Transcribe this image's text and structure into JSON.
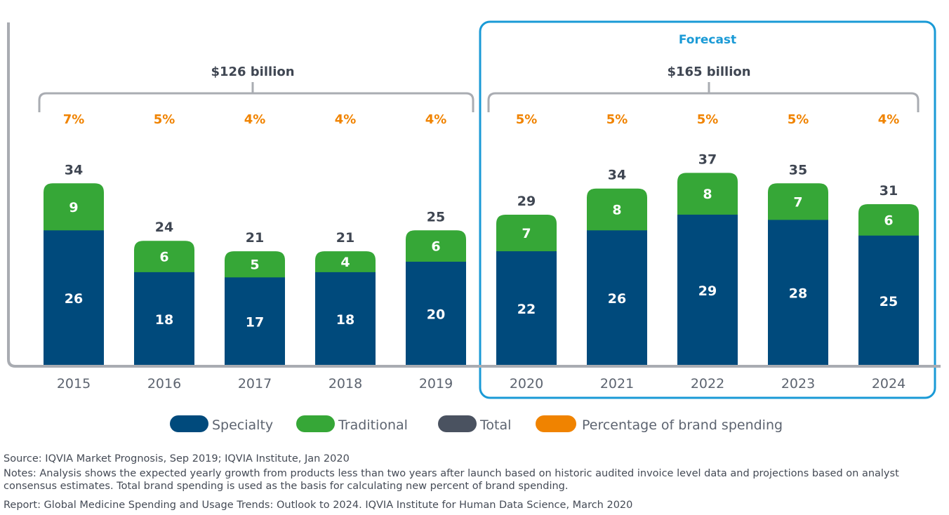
{
  "chart_data": {
    "type": "bar",
    "stacked": true,
    "categories": [
      "2015",
      "2016",
      "2017",
      "2018",
      "2019",
      "2020",
      "2021",
      "2022",
      "2023",
      "2024"
    ],
    "series": [
      {
        "name": "Specialty",
        "color": "#004a7c",
        "values": [
          26,
          18,
          17,
          18,
          20,
          22,
          26,
          29,
          28,
          25
        ]
      },
      {
        "name": "Traditional",
        "color": "#36a737",
        "values": [
          9,
          6,
          5,
          4,
          6,
          7,
          8,
          8,
          7,
          6
        ]
      }
    ],
    "totals": [
      34,
      24,
      21,
      21,
      25,
      29,
      34,
      37,
      35,
      31
    ],
    "percentages": [
      "7%",
      "5%",
      "4%",
      "4%",
      "4%",
      "5%",
      "5%",
      "5%",
      "5%",
      "4%"
    ],
    "ylim": [
      0,
      40
    ],
    "grid": false,
    "legend_position": "bottom",
    "legend": [
      {
        "name": "Specialty",
        "color": "#004a7c"
      },
      {
        "name": "Traditional",
        "color": "#36a737"
      },
      {
        "name": "Total",
        "color": "#4a5260"
      },
      {
        "name": "Percentage of brand spending",
        "color": "#f08300"
      }
    ],
    "annotations": {
      "forecast_label": "Forecast",
      "forecast_color": "#1a9ad6",
      "historical_total": "$126 billion",
      "forecast_total": "$165 billion"
    }
  },
  "colors": {
    "axis": "#a9acb2",
    "tick_text": "#5d6470",
    "total_text": "#3f4652",
    "percent_text": "#f08300",
    "bar_label": "#ffffff"
  },
  "footer": {
    "source": "Source: IQVIA Market Prognosis, Sep 2019; IQVIA Institute, Jan 2020",
    "notes": "Notes: Analysis shows the expected yearly growth from products less than two years after launch based on historic audited invoice level data and projections based on analyst consensus estimates. Total brand spending is used as the basis for calculating new percent of brand spending.",
    "report": "Report: Global Medicine Spending and Usage Trends: Outlook to 2024. IQVIA Institute for Human Data Science, March 2020"
  }
}
